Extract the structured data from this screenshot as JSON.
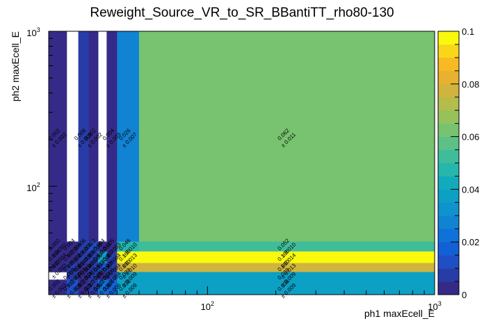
{
  "chart_data": {
    "type": "heatmap",
    "title": "Reweight_Source_VR_to_SR_BBantiTT_rho80-130",
    "xlabel": "ph1 maxEcell_E",
    "ylabel": "ph2 maxEcell_E",
    "x_scale": "log",
    "y_scale": "log",
    "xlim": [
      20,
      1000
    ],
    "ylim": [
      20,
      1000
    ],
    "x_ticks": [
      {
        "v": 100,
        "b": "10",
        "e": "2"
      },
      {
        "v": 1000,
        "b": "10",
        "e": "3"
      }
    ],
    "y_ticks": [
      {
        "v": 100,
        "b": "10",
        "e": "2"
      },
      {
        "v": 1000,
        "b": "10",
        "e": "3"
      }
    ],
    "x_edges": [
      20,
      24,
      27,
      30,
      33,
      36,
      40,
      50,
      1000
    ],
    "y_edges": [
      20,
      25,
      28,
      32,
      38,
      44,
      1000
    ],
    "zlim": [
      0,
      0.1
    ],
    "z_ticks": [
      "0",
      "0.02",
      "0.04",
      "0.06",
      "0.08",
      "0.1"
    ],
    "cells": [
      {
        "i": 0,
        "j": 5,
        "z": 0.002,
        "label": "0.002",
        "err": "± 0.002"
      },
      {
        "i": 1,
        "j": 5,
        "z": null
      },
      {
        "i": 2,
        "j": 5,
        "z": 0.008,
        "label": "0.008",
        "err": "± 0.008"
      },
      {
        "i": 3,
        "j": 5,
        "z": 0.002,
        "label": "0.002",
        "err": "± 0.002"
      },
      {
        "i": 4,
        "j": 5,
        "z": null
      },
      {
        "i": 5,
        "j": 5,
        "z": 0.004,
        "label": "0.004",
        "err": "± 0.003"
      },
      {
        "i": 6,
        "j": 5,
        "z": 0.026,
        "label": "0.026",
        "err": "± 0.007"
      },
      {
        "i": 7,
        "j": 5,
        "z": 0.062,
        "label": "0.062",
        "err": "± 0.011"
      },
      {
        "i": 0,
        "j": 4,
        "z": 0.002,
        "label": "0.002",
        "err": "± 0.002"
      },
      {
        "i": 1,
        "j": 4,
        "z": 0.004,
        "label": "0.004",
        "err": "± 0.004"
      },
      {
        "i": 2,
        "j": 4,
        "z": 0.006,
        "label": "0.006",
        "err": "± 0.006"
      },
      {
        "i": 3,
        "j": 4,
        "z": 0.012,
        "label": "0.012",
        "err": "± 0.009"
      },
      {
        "i": 4,
        "j": 4,
        "z": 0.004,
        "label": "0.004",
        "err": "± 0.004"
      },
      {
        "i": 5,
        "j": 4,
        "z": 0.005,
        "label": "0.005",
        "err": "± 0.003"
      },
      {
        "i": 6,
        "j": 4,
        "z": 0.046,
        "label": "0.046",
        "err": "± 0.010"
      },
      {
        "i": 7,
        "j": 4,
        "z": 0.052,
        "label": "0.052",
        "err": "± 0.010"
      },
      {
        "i": 0,
        "j": 3,
        "z": 0.004,
        "label": "0.004",
        "err": "± 0.004"
      },
      {
        "i": 1,
        "j": 3,
        "z": 0.002,
        "label": "0.002",
        "err": "± 0.002"
      },
      {
        "i": 2,
        "j": 3,
        "z": 0.006,
        "label": "0.006",
        "err": "± 0.006"
      },
      {
        "i": 3,
        "j": 3,
        "z": 0.008,
        "label": "0.008",
        "err": "± 0.005"
      },
      {
        "i": 4,
        "j": 3,
        "z": 0.036,
        "label": "0.036",
        "err": "± 0.008"
      },
      {
        "i": 5,
        "j": 3,
        "z": 0.007,
        "label": "0.007",
        "err": "± 0.004"
      },
      {
        "i": 6,
        "j": 3,
        "z": 0.1,
        "label": "0.100",
        "err": "± 0.013"
      },
      {
        "i": 7,
        "j": 3,
        "z": 0.1,
        "label": "0.100",
        "err": "± 0.014"
      },
      {
        "i": 0,
        "j": 2,
        "z": 0.002,
        "label": "0.002",
        "err": "± 0.002"
      },
      {
        "i": 1,
        "j": 2,
        "z": 0.006,
        "label": "0.006",
        "err": "± 0.006"
      },
      {
        "i": 2,
        "j": 2,
        "z": 0.004,
        "label": "0.004",
        "err": "± 0.004"
      },
      {
        "i": 3,
        "j": 2,
        "z": 0.006,
        "label": "0.006",
        "err": "± 0.006"
      },
      {
        "i": 4,
        "j": 2,
        "z": 0.014,
        "label": "0.014",
        "err": "± 0.006"
      },
      {
        "i": 5,
        "j": 2,
        "z": 0.006,
        "label": "0.006",
        "err": "± 0.004"
      },
      {
        "i": 6,
        "j": 2,
        "z": 0.08,
        "label": "0.080",
        "err": "± 0.010"
      },
      {
        "i": 7,
        "j": 2,
        "z": 0.08,
        "label": "0.080",
        "err": "± 0.013"
      },
      {
        "i": 0,
        "j": 1,
        "z": null
      },
      {
        "i": 1,
        "j": 1,
        "z": 0.008,
        "label": "0.008",
        "err": "± 0.006"
      },
      {
        "i": 2,
        "j": 1,
        "z": 0.004,
        "label": "0.004",
        "err": "± 0.004"
      },
      {
        "i": 3,
        "j": 1,
        "z": 0.007,
        "label": "0.007",
        "err": "± 0.005"
      },
      {
        "i": 4,
        "j": 1,
        "z": 0.004,
        "label": "0.004",
        "err": "± 0.004"
      },
      {
        "i": 5,
        "j": 1,
        "z": 0.006,
        "label": "0.006",
        "err": "± 0.004"
      },
      {
        "i": 6,
        "j": 1,
        "z": 0.038,
        "label": "0.038",
        "err": "± 0.009"
      },
      {
        "i": 7,
        "j": 1,
        "z": 0.038,
        "label": "0.038",
        "err": "± 0.009"
      },
      {
        "i": 0,
        "j": 0,
        "z": 0.002,
        "label": "0.002",
        "err": "± 0.002"
      },
      {
        "i": 1,
        "j": 0,
        "z": 0.012,
        "label": "0.012",
        "err": "± 0.007"
      },
      {
        "i": 2,
        "j": 0,
        "z": 0.002,
        "label": "0.002",
        "err": "± 0.002"
      },
      {
        "i": 3,
        "j": 0,
        "z": 0.007,
        "label": "0.007",
        "err": "± 0.005"
      },
      {
        "i": 4,
        "j": 0,
        "z": 0.022,
        "label": "0.022",
        "err": "± 0.008"
      },
      {
        "i": 5,
        "j": 0,
        "z": 0.016,
        "label": "0.016",
        "err": "± 0.006"
      },
      {
        "i": 6,
        "j": 0,
        "z": 0.038,
        "label": "0.038",
        "err": "± 0.009"
      },
      {
        "i": 7,
        "j": 0,
        "z": 0.038,
        "label": "0.038",
        "err": "± 0.009"
      }
    ],
    "palette": [
      "#352a87",
      "#283ca8",
      "#1f4fc5",
      "#1260d6",
      "#0f72d9",
      "#1183d3",
      "#0f93ce",
      "#0da0c5",
      "#12abbb",
      "#26b6ac",
      "#3fbd9b",
      "#5cc186",
      "#78c36f",
      "#96c15b",
      "#b4bc4b",
      "#d1b43e",
      "#e9b130",
      "#f8ba22",
      "#fad61a",
      "#f9f90e"
    ],
    "grid": false
  }
}
